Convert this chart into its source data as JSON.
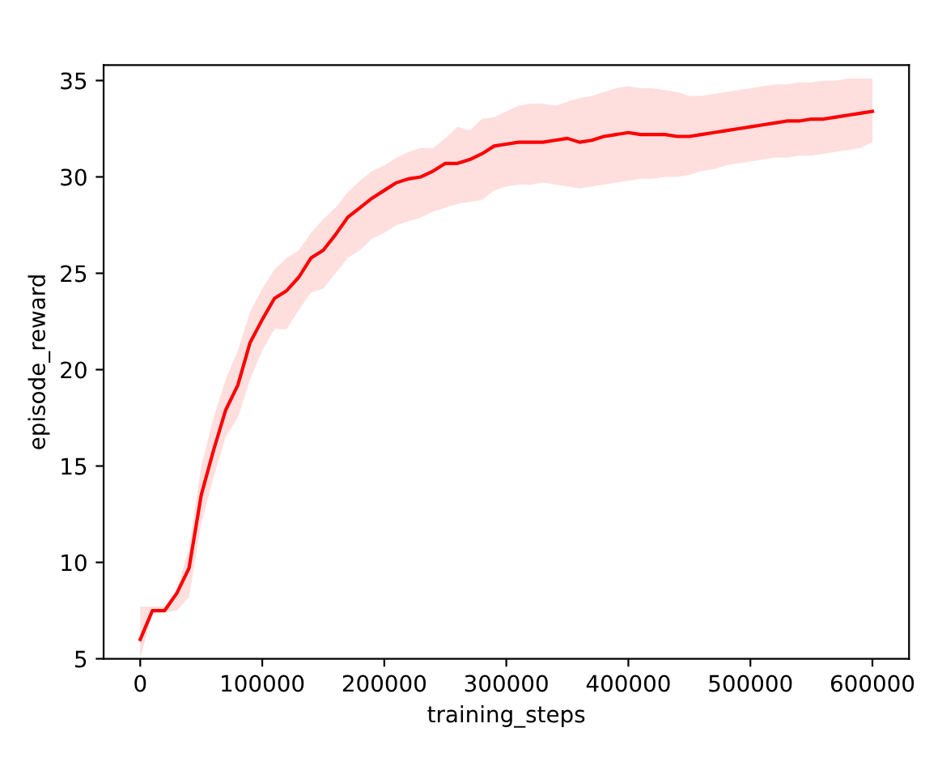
{
  "chart_data": {
    "type": "line",
    "xlabel": "training_steps",
    "ylabel": "episode_reward",
    "x": [
      0,
      10000,
      20000,
      30000,
      40000,
      50000,
      60000,
      70000,
      80000,
      90000,
      100000,
      110000,
      120000,
      130000,
      140000,
      150000,
      160000,
      170000,
      180000,
      190000,
      200000,
      210000,
      220000,
      230000,
      240000,
      250000,
      260000,
      270000,
      280000,
      290000,
      300000,
      310000,
      320000,
      330000,
      340000,
      350000,
      360000,
      370000,
      380000,
      390000,
      400000,
      410000,
      420000,
      430000,
      440000,
      450000,
      460000,
      470000,
      480000,
      490000,
      500000,
      510000,
      520000,
      530000,
      540000,
      550000,
      560000,
      570000,
      580000,
      590000,
      600000
    ],
    "series": [
      {
        "color": "#ff0000",
        "values": [
          6.0,
          7.5,
          7.5,
          8.4,
          9.7,
          13.5,
          15.8,
          17.9,
          19.2,
          21.4,
          22.6,
          23.7,
          24.1,
          24.8,
          25.8,
          26.2,
          27.0,
          27.9,
          28.4,
          28.9,
          29.3,
          29.7,
          29.9,
          30.0,
          30.3,
          30.7,
          30.7,
          30.9,
          31.2,
          31.6,
          31.7,
          31.8,
          31.8,
          31.8,
          31.9,
          32.0,
          31.8,
          31.9,
          32.1,
          32.2,
          32.3,
          32.2,
          32.2,
          32.2,
          32.1,
          32.1,
          32.2,
          32.3,
          32.4,
          32.5,
          32.6,
          32.7,
          32.8,
          32.9,
          32.9,
          33.0,
          33.0,
          33.1,
          33.2,
          33.3,
          33.4
        ],
        "lower": [
          5.0,
          7.4,
          7.4,
          7.5,
          8.2,
          12.0,
          14.4,
          16.5,
          17.5,
          19.5,
          21.0,
          22.1,
          22.1,
          23.1,
          24.0,
          24.2,
          25.0,
          25.8,
          26.2,
          26.8,
          27.1,
          27.5,
          27.7,
          27.9,
          28.2,
          28.4,
          28.6,
          28.7,
          28.8,
          29.3,
          29.5,
          29.6,
          29.6,
          29.7,
          29.6,
          29.5,
          29.4,
          29.5,
          29.6,
          29.7,
          29.8,
          29.9,
          29.9,
          30.0,
          30.0,
          30.1,
          30.3,
          30.4,
          30.6,
          30.7,
          30.8,
          30.9,
          31.0,
          31.0,
          31.1,
          31.1,
          31.2,
          31.3,
          31.4,
          31.5,
          31.8
        ],
        "upper": [
          7.7,
          7.7,
          7.7,
          8.6,
          10.7,
          15.0,
          17.5,
          19.5,
          21.0,
          23.0,
          24.2,
          25.2,
          25.8,
          26.2,
          27.1,
          27.8,
          28.4,
          29.2,
          29.8,
          30.3,
          30.6,
          31.0,
          31.3,
          31.5,
          31.5,
          32.0,
          32.6,
          32.4,
          33.0,
          33.1,
          33.4,
          33.7,
          33.8,
          33.8,
          33.7,
          33.9,
          34.1,
          34.2,
          34.4,
          34.6,
          34.7,
          34.6,
          34.6,
          34.5,
          34.4,
          34.2,
          34.2,
          34.3,
          34.4,
          34.5,
          34.6,
          34.7,
          34.8,
          34.8,
          34.9,
          34.9,
          35.0,
          35.0,
          35.1,
          35.1,
          35.1
        ]
      }
    ],
    "xlim": [
      -30000,
      630000
    ],
    "ylim": [
      5,
      35.8
    ],
    "xticks": [
      0,
      100000,
      200000,
      300000,
      400000,
      500000,
      600000
    ],
    "yticks": [
      5,
      10,
      15,
      20,
      25,
      30,
      35
    ],
    "grid": false,
    "legend": false
  }
}
